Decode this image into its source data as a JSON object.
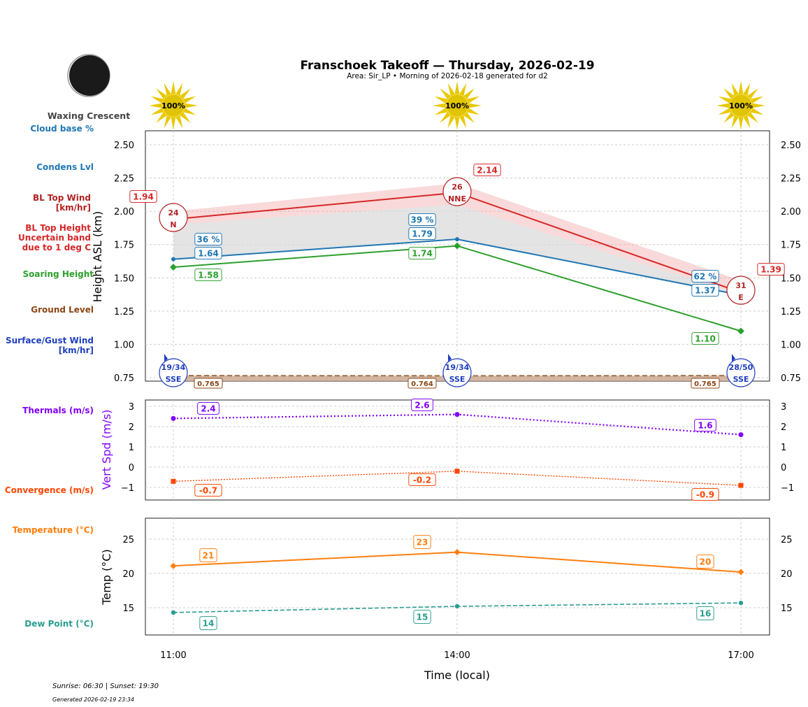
{
  "header": {
    "title": "Franschoek Takeoff — Thursday, 2026-02-19",
    "subtitle": "Area: Sir_LP • Morning of 2026-02-18 generated for d2",
    "moon_phase": "Waxing Crescent"
  },
  "footer": {
    "sun_times": "Sunrise: 06:30 | Sunset: 19:30",
    "generated": "Generated 2026-02-19 23:34"
  },
  "colors": {
    "cloud": "#1f77b4",
    "bl_wind": "#b22222",
    "bl_top": "#d62728",
    "soaring": "#2ca02c",
    "ground": "#8b4513",
    "surface_wind": "#1f3fbf",
    "thermals": "#8000ff",
    "convergence": "#ff4500",
    "temperature": "#ff7f0e",
    "dew": "#2a9d8f",
    "sun": "#e8c800"
  },
  "chart_data": [
    {
      "type": "line",
      "title": "Franschoek Takeoff — Thursday, 2026-02-19",
      "ylabel": "Height ASL (km)",
      "ylim": [
        0.72,
        2.61
      ],
      "yticks": [
        "0.75",
        "1.00",
        "1.25",
        "1.50",
        "1.75",
        "2.00",
        "2.25",
        "2.50"
      ],
      "x": [
        "11:00",
        "14:00",
        "17:00"
      ],
      "grid": true,
      "side_labels": [
        "Cloud base %",
        "Condens Lvl",
        "BL Top Wind [km/hr]",
        "BL Top Height Uncertain band due to 1 deg C",
        "Soaring Height",
        "Ground Level",
        "Surface/Gust Wind [km/hr]"
      ],
      "sun_percent": [
        "100%",
        "100%",
        "100%"
      ],
      "series": [
        {
          "key": "bl_top",
          "values": [
            1.94,
            2.14,
            1.39
          ],
          "labels": [
            "1.94",
            "2.14",
            "1.39"
          ],
          "band_upper": [
            2.0,
            2.21,
            1.48
          ],
          "band_lower": [
            1.9,
            2.05,
            1.37
          ]
        },
        {
          "key": "cloud_pct",
          "labels": [
            "36 %",
            "39 %",
            "62 %"
          ]
        },
        {
          "key": "condens",
          "values": [
            1.64,
            1.79,
            1.37
          ],
          "labels": [
            "1.64",
            "1.79",
            "1.37"
          ]
        },
        {
          "key": "soaring",
          "values": [
            1.58,
            1.74,
            1.1
          ],
          "labels": [
            "1.58",
            "1.74",
            "1.10"
          ]
        },
        {
          "key": "ground",
          "values": [
            0.765,
            0.764,
            0.765
          ],
          "labels": [
            "0.765",
            "0.764",
            "0.765"
          ]
        }
      ],
      "bl_wind": [
        {
          "speed": "24",
          "dir": "N"
        },
        {
          "speed": "26",
          "dir": "NNE"
        },
        {
          "speed": "31",
          "dir": "E"
        }
      ],
      "surface_wind": [
        {
          "speed": "19/34",
          "dir": "SSE"
        },
        {
          "speed": "19/34",
          "dir": "SSE"
        },
        {
          "speed": "28/50",
          "dir": "SSE"
        }
      ]
    },
    {
      "type": "line",
      "ylabel": "Vert Spd (m/s)",
      "ylim": [
        -1.6,
        3.3
      ],
      "yticks": [
        "−1",
        "0",
        "1",
        "2",
        "3"
      ],
      "x": [
        "11:00",
        "14:00",
        "17:00"
      ],
      "side_labels": [
        "Thermals (m/s)",
        "Convergence (m/s)"
      ],
      "series": [
        {
          "key": "thermals",
          "values": [
            2.4,
            2.6,
            1.6
          ],
          "labels": [
            "2.4",
            "2.6",
            "1.6"
          ]
        },
        {
          "key": "convergence",
          "values": [
            -0.7,
            -0.2,
            -0.9
          ],
          "labels": [
            "-0.7",
            "-0.2",
            "-0.9"
          ]
        }
      ]
    },
    {
      "type": "line",
      "ylabel": "Temp (°C)",
      "xlabel": "Time (local)",
      "ylim": [
        11.1,
        28.1
      ],
      "yticks": [
        "15",
        "20",
        "25"
      ],
      "x": [
        "11:00",
        "14:00",
        "17:00"
      ],
      "side_labels": [
        "Temperature (°C)",
        "Dew Point (°C)"
      ],
      "series": [
        {
          "key": "temperature",
          "values": [
            21.1,
            23.1,
            20.2
          ],
          "labels": [
            "21",
            "23",
            "20"
          ]
        },
        {
          "key": "dew",
          "values": [
            14.3,
            15.2,
            15.7
          ],
          "labels": [
            "14",
            "15",
            "16"
          ]
        }
      ]
    }
  ]
}
